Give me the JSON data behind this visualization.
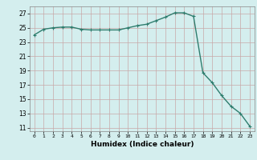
{
  "x": [
    0,
    1,
    2,
    3,
    4,
    5,
    6,
    7,
    8,
    9,
    10,
    11,
    12,
    13,
    14,
    15,
    16,
    17,
    18,
    19,
    20,
    21,
    22,
    23
  ],
  "y": [
    24.0,
    24.8,
    25.0,
    25.1,
    25.1,
    24.8,
    24.7,
    24.7,
    24.7,
    24.7,
    25.0,
    25.3,
    25.5,
    26.0,
    26.5,
    27.1,
    27.1,
    26.6,
    18.7,
    17.3,
    15.5,
    14.0,
    13.0,
    11.2
  ],
  "line_color": "#2e7d6e",
  "marker": "+",
  "marker_size": 3,
  "background_color": "#d4eeee",
  "grid_color": "#b8d8d8",
  "xlabel": "Humidex (Indice chaleur)",
  "xlabel_fontsize": 6.5,
  "ylabel_ticks": [
    11,
    13,
    15,
    17,
    19,
    21,
    23,
    25,
    27
  ],
  "xlim": [
    -0.5,
    23.5
  ],
  "ylim": [
    10.5,
    28.0
  ],
  "xtick_labels": [
    "0",
    "1",
    "2",
    "3",
    "4",
    "5",
    "6",
    "7",
    "8",
    "9",
    "10",
    "11",
    "12",
    "13",
    "14",
    "15",
    "16",
    "17",
    "18",
    "19",
    "20",
    "21",
    "22",
    "23"
  ]
}
